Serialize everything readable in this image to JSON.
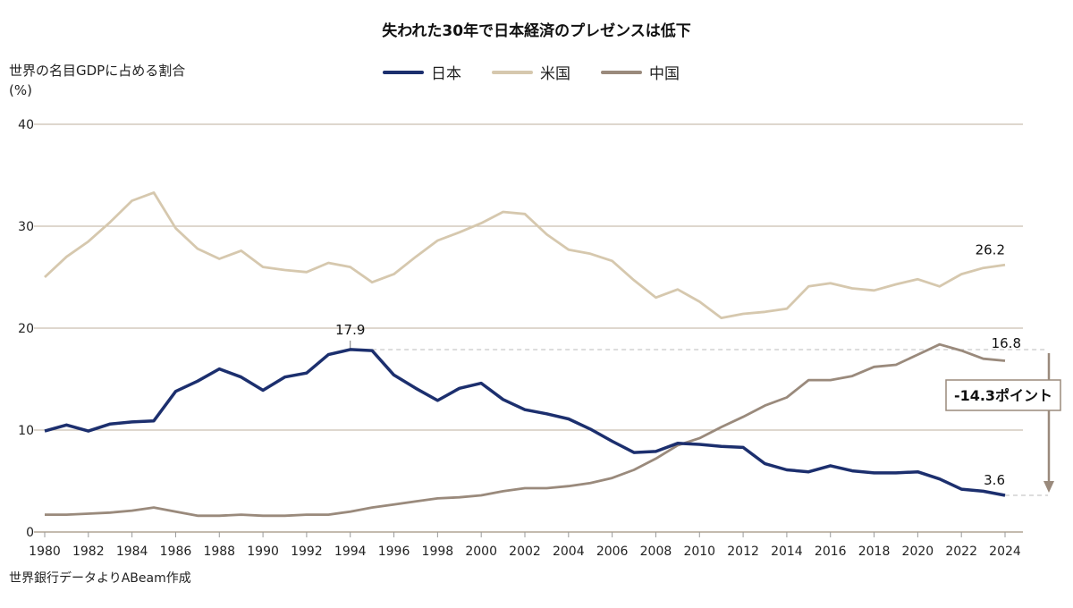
{
  "chart_data": {
    "type": "line",
    "title": "失われた30年で日本経済のプレゼンスは低下",
    "ylabel": "世界の名目GDPに占める割合",
    "yunit": "(%)",
    "source": "世界銀行データよりABeam作成",
    "xlim": [
      1980,
      2024
    ],
    "ylim": [
      0,
      40
    ],
    "yticks": [
      0,
      10,
      20,
      30,
      40
    ],
    "xticks": [
      1980,
      1982,
      1984,
      1986,
      1988,
      1990,
      1992,
      1994,
      1996,
      1998,
      2000,
      2002,
      2004,
      2006,
      2008,
      2010,
      2012,
      2014,
      2016,
      2018,
      2020,
      2022,
      2024
    ],
    "grid": "horizontal",
    "legend_position": "top-center",
    "x": [
      1980,
      1981,
      1982,
      1983,
      1984,
      1985,
      1986,
      1987,
      1988,
      1989,
      1990,
      1991,
      1992,
      1993,
      1994,
      1995,
      1996,
      1997,
      1998,
      1999,
      2000,
      2001,
      2002,
      2003,
      2004,
      2005,
      2006,
      2007,
      2008,
      2009,
      2010,
      2011,
      2012,
      2013,
      2014,
      2015,
      2016,
      2017,
      2018,
      2019,
      2020,
      2021,
      2022,
      2023,
      2024
    ],
    "series": [
      {
        "name": "日本",
        "color": "#1c2f6e",
        "values": [
          9.9,
          10.5,
          9.9,
          10.6,
          10.8,
          10.9,
          13.8,
          14.8,
          16.0,
          15.2,
          13.9,
          15.2,
          15.6,
          17.4,
          17.9,
          17.8,
          15.4,
          14.1,
          12.9,
          14.1,
          14.6,
          13.0,
          12.0,
          11.6,
          11.1,
          10.1,
          8.9,
          7.8,
          7.9,
          8.7,
          8.6,
          8.4,
          8.3,
          6.7,
          6.1,
          5.9,
          6.5,
          6.0,
          5.8,
          5.8,
          5.9,
          5.2,
          4.2,
          4.0,
          3.6
        ]
      },
      {
        "name": "米国",
        "color": "#d6c8ae",
        "values": [
          25.0,
          27.0,
          28.5,
          30.4,
          32.5,
          33.3,
          29.8,
          27.8,
          26.8,
          27.6,
          26.0,
          25.7,
          25.5,
          26.4,
          26.0,
          24.5,
          25.3,
          27.0,
          28.6,
          29.4,
          30.3,
          31.4,
          31.2,
          29.2,
          27.7,
          27.3,
          26.6,
          24.7,
          23.0,
          23.8,
          22.6,
          21.0,
          21.4,
          21.6,
          21.9,
          24.1,
          24.4,
          23.9,
          23.7,
          24.3,
          24.8,
          24.1,
          25.3,
          25.9,
          26.2
        ]
      },
      {
        "name": "中国",
        "color": "#9a8a7c",
        "values": [
          1.7,
          1.7,
          1.8,
          1.9,
          2.1,
          2.4,
          2.0,
          1.6,
          1.6,
          1.7,
          1.6,
          1.6,
          1.7,
          1.7,
          2.0,
          2.4,
          2.7,
          3.0,
          3.3,
          3.4,
          3.6,
          4.0,
          4.3,
          4.3,
          4.5,
          4.8,
          5.3,
          6.1,
          7.2,
          8.5,
          9.2,
          10.3,
          11.3,
          12.4,
          13.2,
          14.9,
          14.9,
          15.3,
          16.2,
          16.4,
          17.4,
          18.4,
          17.8,
          17.0,
          16.8
        ]
      }
    ],
    "annotations": [
      {
        "text": "17.9",
        "x": 1994,
        "y": 17.9
      },
      {
        "text": "26.2",
        "x": 2024,
        "y": 26.2
      },
      {
        "text": "16.8",
        "x": 2024,
        "y": 16.8
      },
      {
        "text": "3.6",
        "x": 2024,
        "y": 3.6
      },
      {
        "text": "-14.3ポイント",
        "from": 17.9,
        "to": 3.6
      }
    ]
  }
}
